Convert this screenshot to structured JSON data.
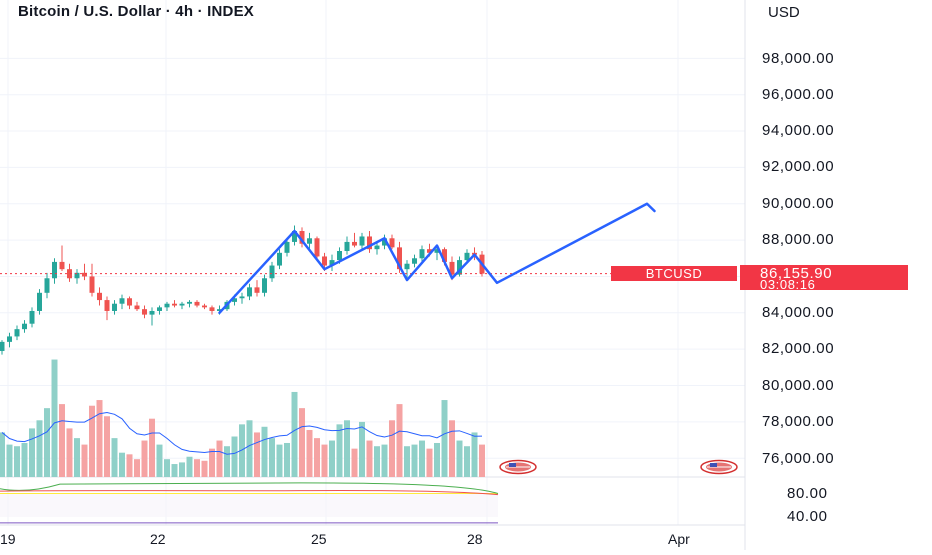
{
  "header": {
    "title": "Bitcoin / U.S. Dollar · 4h · INDEX",
    "currency": "USD"
  },
  "price_axis": {
    "labels": [
      "98,000.00",
      "96,000.00",
      "94,000.00",
      "92,000.00",
      "90,000.00",
      "88,000.00",
      "84,000.00",
      "82,000.00",
      "80,000.00",
      "78,000.00",
      "76,000.00"
    ],
    "values": [
      98000,
      96000,
      94000,
      92000,
      90000,
      88000,
      84000,
      82000,
      80000,
      78000,
      76000
    ]
  },
  "indicator_axis": {
    "labels": [
      "80.00",
      "40.00"
    ],
    "values": [
      80,
      40
    ]
  },
  "time_axis": {
    "labels": [
      "19",
      "22",
      "25",
      "28",
      "Apr"
    ]
  },
  "last_price": {
    "ticker": "BTCUSD",
    "price": "86,155.90",
    "countdown": "03:08:16",
    "value": 86155.9
  },
  "colors": {
    "up": "#26a69a",
    "down": "#ef5350",
    "up_volume": "#8fd0c8",
    "down_volume": "#f5a3a3",
    "drawing": "#2962ff",
    "price_line": "#f23645",
    "grid": "#f0f3fa",
    "text": "#131722",
    "volume_ma": "#2962ff",
    "rsi": "#ef5350",
    "rsi_ma": "#4caf50",
    "rsi_level": "#ffeb3b",
    "rsi_band": "#7e57c2"
  },
  "icons": [
    "us-flag-event-icon",
    "us-flag-event-icon"
  ],
  "chart_data": {
    "type": "candlestick",
    "title": "Bitcoin / U.S. Dollar · 4h · INDEX",
    "xlabel": "",
    "ylabel": "USD",
    "ylim": [
      75500,
      100000
    ],
    "grid": true,
    "x_ticks": [
      "19",
      "22",
      "25",
      "28",
      "Apr"
    ],
    "candles": [
      [
        81900,
        82500,
        81700,
        82400
      ],
      [
        82400,
        82900,
        82100,
        82700
      ],
      [
        82700,
        83300,
        82500,
        83100
      ],
      [
        83100,
        83600,
        82900,
        83400
      ],
      [
        83400,
        84300,
        83200,
        84100
      ],
      [
        84100,
        85300,
        83900,
        85100
      ],
      [
        85100,
        86200,
        84800,
        85900
      ],
      [
        85900,
        87000,
        85600,
        86800
      ],
      [
        86800,
        87700,
        86300,
        86400
      ],
      [
        86400,
        86700,
        85700,
        85900
      ],
      [
        85900,
        86400,
        85600,
        86200
      ],
      [
        86200,
        86700,
        85800,
        86000
      ],
      [
        86000,
        86700,
        84900,
        85100
      ],
      [
        85100,
        85400,
        84400,
        84700
      ],
      [
        84700,
        84900,
        83600,
        84100
      ],
      [
        84100,
        84700,
        83900,
        84500
      ],
      [
        84500,
        85000,
        84200,
        84800
      ],
      [
        84800,
        84900,
        84200,
        84400
      ],
      [
        84400,
        84600,
        84100,
        84200
      ],
      [
        84200,
        84400,
        83700,
        83900
      ],
      [
        83900,
        84300,
        83300,
        84100
      ],
      [
        84100,
        84400,
        83900,
        84300
      ],
      [
        84300,
        84600,
        84100,
        84500
      ],
      [
        84500,
        84700,
        84300,
        84400
      ],
      [
        84400,
        84600,
        84200,
        84500
      ],
      [
        84500,
        84700,
        84300,
        84600
      ],
      [
        84600,
        84700,
        84300,
        84400
      ],
      [
        84400,
        84500,
        84200,
        84300
      ],
      [
        84300,
        84400,
        83900,
        84100
      ],
      [
        84100,
        84400,
        83900,
        84200
      ],
      [
        84200,
        84700,
        84100,
        84600
      ],
      [
        84600,
        85000,
        84400,
        84800
      ],
      [
        84800,
        85100,
        84500,
        84900
      ],
      [
        84900,
        85600,
        84700,
        85400
      ],
      [
        85400,
        85800,
        84900,
        85100
      ],
      [
        85100,
        86100,
        84900,
        85900
      ],
      [
        85900,
        86800,
        85700,
        86600
      ],
      [
        86600,
        87500,
        86400,
        87300
      ],
      [
        87300,
        88100,
        87100,
        87900
      ],
      [
        87900,
        88800,
        87700,
        88500
      ],
      [
        88500,
        88700,
        87600,
        87800
      ],
      [
        87800,
        88400,
        87400,
        88100
      ],
      [
        88100,
        88200,
        86900,
        87100
      ],
      [
        87100,
        87300,
        86300,
        86600
      ],
      [
        86600,
        87200,
        86300,
        86900
      ],
      [
        86900,
        87600,
        86700,
        87400
      ],
      [
        87400,
        88200,
        87200,
        87900
      ],
      [
        87900,
        88400,
        87600,
        87700
      ],
      [
        87700,
        88400,
        87500,
        88200
      ],
      [
        88200,
        88500,
        87300,
        87500
      ],
      [
        87500,
        87900,
        87200,
        87700
      ],
      [
        87700,
        88300,
        87500,
        88100
      ],
      [
        88100,
        88300,
        87500,
        87600
      ],
      [
        87600,
        87900,
        86200,
        86400
      ],
      [
        86400,
        86900,
        85800,
        86700
      ],
      [
        86700,
        87200,
        86500,
        87000
      ],
      [
        87000,
        87700,
        86800,
        87500
      ],
      [
        87500,
        87800,
        87100,
        87300
      ],
      [
        87300,
        87700,
        86900,
        87500
      ],
      [
        87500,
        87600,
        86600,
        86800
      ],
      [
        86800,
        87100,
        85800,
        86100
      ],
      [
        86100,
        87100,
        86000,
        86900
      ],
      [
        86900,
        87500,
        86700,
        87300
      ],
      [
        87300,
        87600,
        86900,
        87200
      ],
      [
        87200,
        87400,
        86000,
        86155.9
      ]
    ],
    "volume": [
      [
        55,
        1
      ],
      [
        40,
        1
      ],
      [
        38,
        1
      ],
      [
        42,
        1
      ],
      [
        60,
        1
      ],
      [
        70,
        1
      ],
      [
        85,
        1
      ],
      [
        145,
        1
      ],
      [
        90,
        0
      ],
      [
        60,
        0
      ],
      [
        48,
        1
      ],
      [
        40,
        0
      ],
      [
        88,
        0
      ],
      [
        95,
        0
      ],
      [
        75,
        0
      ],
      [
        48,
        1
      ],
      [
        30,
        1
      ],
      [
        28,
        0
      ],
      [
        22,
        0
      ],
      [
        45,
        0
      ],
      [
        72,
        0
      ],
      [
        40,
        1
      ],
      [
        22,
        1
      ],
      [
        16,
        1
      ],
      [
        18,
        1
      ],
      [
        25,
        1
      ],
      [
        22,
        0
      ],
      [
        20,
        0
      ],
      [
        35,
        0
      ],
      [
        45,
        0
      ],
      [
        38,
        1
      ],
      [
        50,
        1
      ],
      [
        65,
        1
      ],
      [
        70,
        1
      ],
      [
        55,
        0
      ],
      [
        62,
        1
      ],
      [
        48,
        1
      ],
      [
        40,
        1
      ],
      [
        42,
        1
      ],
      [
        105,
        1
      ],
      [
        85,
        0
      ],
      [
        58,
        0
      ],
      [
        48,
        0
      ],
      [
        40,
        0
      ],
      [
        45,
        1
      ],
      [
        65,
        1
      ],
      [
        70,
        1
      ],
      [
        35,
        0
      ],
      [
        68,
        1
      ],
      [
        45,
        0
      ],
      [
        38,
        1
      ],
      [
        40,
        1
      ],
      [
        70,
        0
      ],
      [
        90,
        0
      ],
      [
        38,
        1
      ],
      [
        40,
        1
      ],
      [
        45,
        1
      ],
      [
        35,
        0
      ],
      [
        42,
        1
      ],
      [
        95,
        1
      ],
      [
        70,
        0
      ],
      [
        45,
        1
      ],
      [
        38,
        1
      ],
      [
        55,
        1
      ],
      [
        40,
        0
      ]
    ],
    "annotations": [
      {
        "type": "polyline",
        "color": "#2962ff",
        "points": [
          [
            29,
            84000
          ],
          [
            39,
            88500
          ],
          [
            43,
            86400
          ],
          [
            51,
            88100
          ],
          [
            54,
            85800
          ],
          [
            58,
            87700
          ],
          [
            60,
            85900
          ],
          [
            63,
            87200
          ],
          [
            66,
            85650
          ],
          [
            86,
            90000
          ],
          [
            87,
            89600
          ]
        ]
      }
    ]
  }
}
